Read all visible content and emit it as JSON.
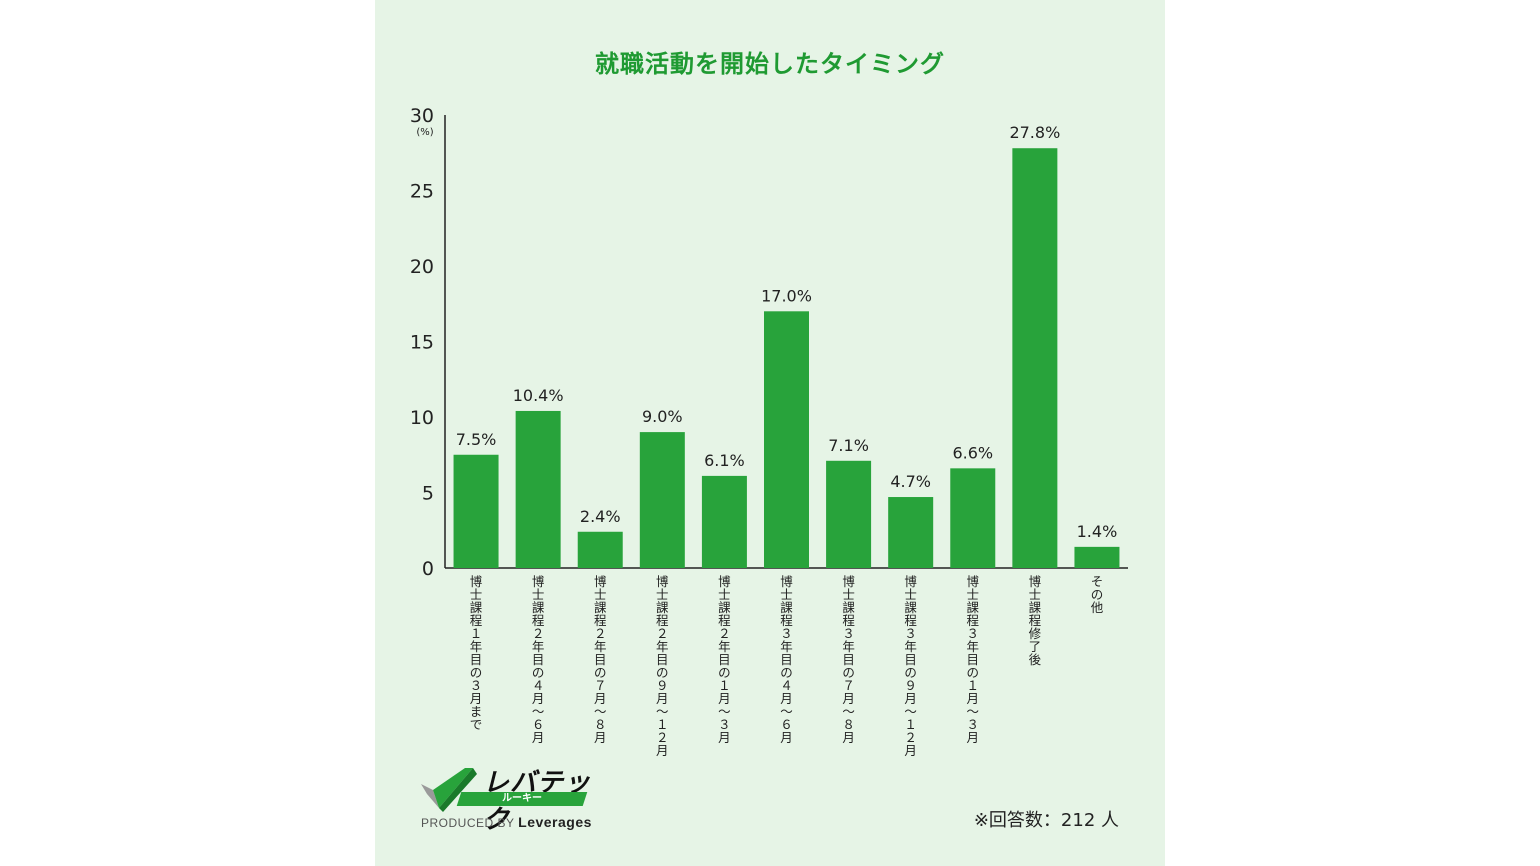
{
  "chart_title": "就職活動を開始したタイミング",
  "brand": {
    "name": "レバテック",
    "sub": "ルーキー",
    "produced_by": "PRODUCED BY",
    "company": "Leverages"
  },
  "note": "※回答数：212 人",
  "colors": {
    "bar": "#28a33b",
    "title": "#1f9a32",
    "background": "#e6f4e6"
  },
  "chart_data": {
    "type": "bar",
    "title": "就職活動を開始したタイミング",
    "unit_label": "(%)",
    "ylim": [
      0,
      30
    ],
    "yticks": [
      0,
      5,
      10,
      15,
      20,
      25,
      30
    ],
    "grid": false,
    "categories": [
      "博士課程１年目の３月まで",
      "博士課程２年目の４月〜６月",
      "博士課程２年目の７月〜８月",
      "博士課程２年目の９月〜１２月",
      "博士課程２年目の１月〜３月",
      "博士課程３年目の４月〜６月",
      "博士課程３年目の７月〜８月",
      "博士課程３年目の９月〜１２月",
      "博士課程３年目の１月〜３月",
      "博士課程修了後",
      "その他"
    ],
    "values": [
      7.5,
      10.4,
      2.4,
      9.0,
      6.1,
      17.0,
      7.1,
      4.7,
      6.6,
      27.8,
      1.4
    ],
    "value_labels": [
      "7.5%",
      "10.4%",
      "2.4%",
      "9.0%",
      "6.1%",
      "17.0%",
      "7.1%",
      "4.7%",
      "6.6%",
      "27.8%",
      "1.4%"
    ]
  }
}
